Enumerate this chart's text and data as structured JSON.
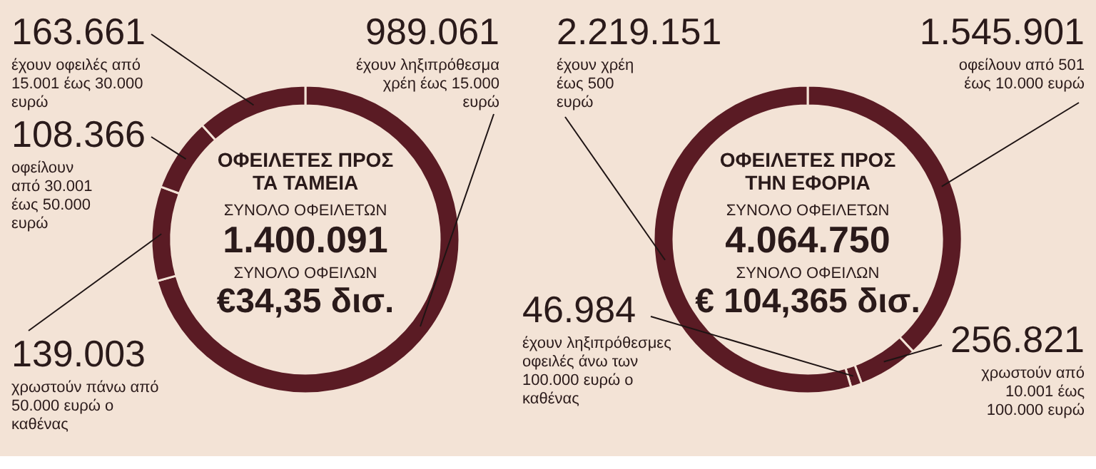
{
  "chart_data": [
    {
      "type": "donut",
      "title": "ΟΦΕΙΛΕΤΕΣ ΠΡΟΣ ΤΑ ΤΑΜΕΙΑ",
      "categories": [
        "έχουν ληξιπρόθεσμα χρέη έως 15.000 ευρώ",
        "χρωστούν πάνω από 50.000 ευρώ ο καθένας",
        "οφείλουν από 30.001 έως 50.000 ευρώ",
        "έχουν οφειλές από 15.001 έως 30.000 ευρώ"
      ],
      "values": [
        989061,
        139003,
        108366,
        163661
      ],
      "value_labels": [
        "989.061",
        "139.003",
        "108.366",
        "163.661"
      ],
      "colors": [
        "#5a1b24",
        "#5a1b24",
        "#5a1b24",
        "#5a1b24"
      ],
      "annotations": [
        "ΣΥΝΟΛΟ ΟΦΕΙΛΕΤΩΝ",
        "1.400.091",
        "ΣΥΝΟΛΟ ΟΦΕΙΛΩΝ",
        "€34,35 δισ."
      ]
    },
    {
      "type": "donut",
      "title": "ΟΦΕΙΛΕΤΕΣ ΠΡΟΣ ΤΗΝ ΕΦΟΡΙΑ",
      "categories": [
        "οφείλουν από 501 έως 10.000 ευρώ",
        "χρωστούν από 10.001 έως 100.000 ευρώ",
        "έχουν ληξιπρόθεσμες οφειλές άνω των 100.000 ευρώ ο καθένας",
        "έχουν χρέη έως 500 ευρώ"
      ],
      "values": [
        1545901,
        256821,
        46984,
        2219151
      ],
      "value_labels": [
        "1.545.901",
        "256.821",
        "46.984",
        "2.219.151"
      ],
      "colors": [
        "#5a1b24",
        "#5a1b24",
        "#5a1b24",
        "#5a1b24"
      ],
      "annotations": [
        "ΣΥΝΟΛΟ ΟΦΕΙΛΕΤΩΝ",
        "4.064.750",
        "ΣΥΝΟΛΟ ΟΦΕΙΛΩΝ",
        "€ 104,365 δισ."
      ]
    }
  ]
}
